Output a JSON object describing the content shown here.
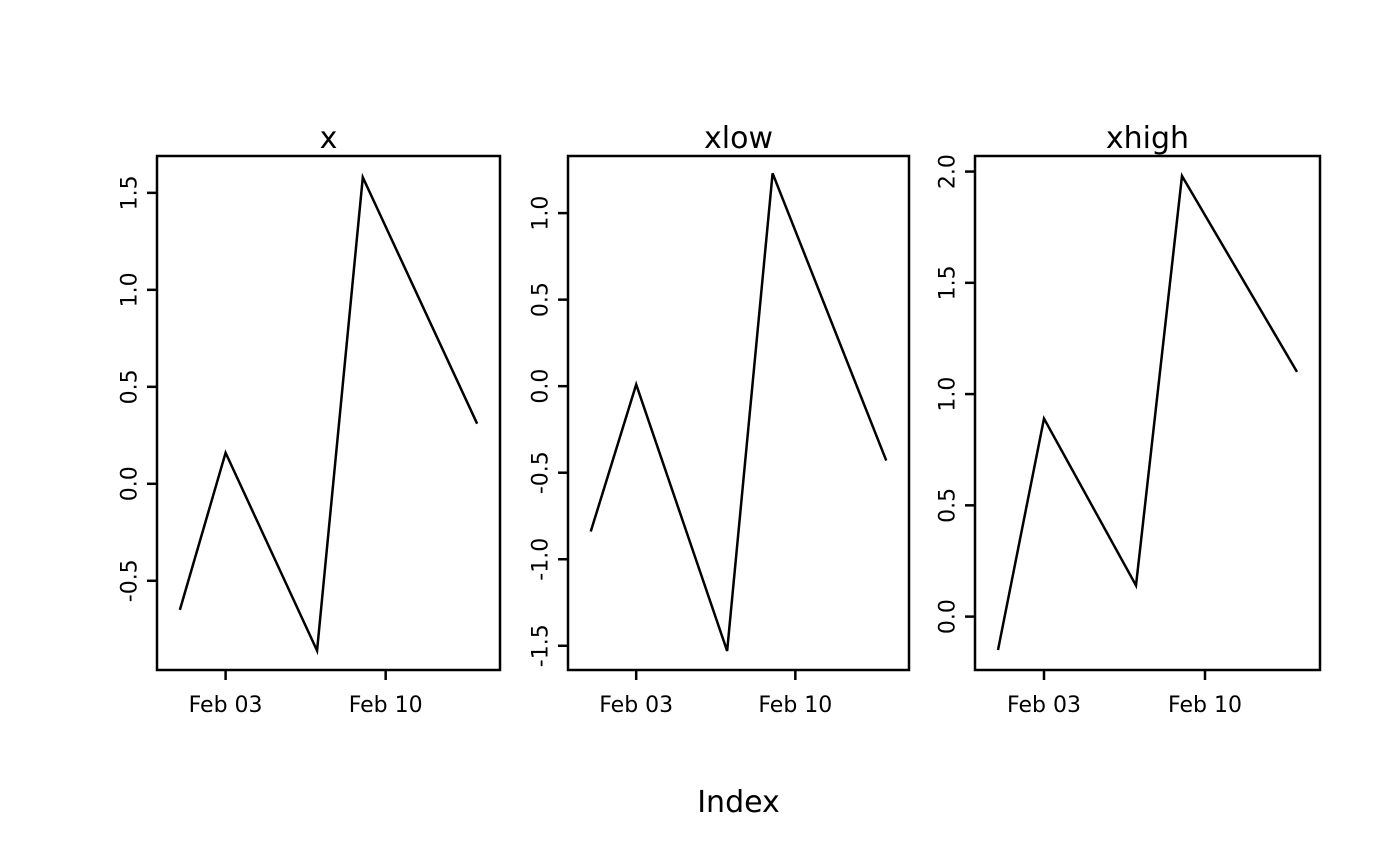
{
  "figure": {
    "xlabel": "Index",
    "background_color": "#ffffff",
    "line_color": "#000000",
    "text_color": "#000000"
  },
  "chart_data": [
    {
      "type": "line",
      "title": "x",
      "x": [
        0,
        2,
        6,
        8,
        13
      ],
      "values": [
        -0.65,
        0.16,
        -0.86,
        1.58,
        0.31
      ],
      "xlim": [
        -1,
        14
      ],
      "ylim": [
        -0.96,
        1.69
      ],
      "xticks": [
        {
          "x": 2,
          "label": "Feb 03"
        },
        {
          "x": 9,
          "label": "Feb 10"
        }
      ],
      "yticks": [
        {
          "y": -0.5,
          "label": "-0.5"
        },
        {
          "y": 0.0,
          "label": "0.0"
        },
        {
          "y": 0.5,
          "label": "0.5"
        },
        {
          "y": 1.0,
          "label": "1.0"
        },
        {
          "y": 1.5,
          "label": "1.5"
        }
      ],
      "grid": false,
      "legend": null
    },
    {
      "type": "line",
      "title": "xlow",
      "x": [
        0,
        2,
        6,
        8,
        13
      ],
      "values": [
        -0.84,
        0.01,
        -1.53,
        1.23,
        -0.43
      ],
      "xlim": [
        -1,
        14
      ],
      "ylim": [
        -1.64,
        1.33
      ],
      "xticks": [
        {
          "x": 2,
          "label": "Feb 03"
        },
        {
          "x": 9,
          "label": "Feb 10"
        }
      ],
      "yticks": [
        {
          "y": -1.5,
          "label": "-1.5"
        },
        {
          "y": -1.0,
          "label": "-1.0"
        },
        {
          "y": -0.5,
          "label": "-0.5"
        },
        {
          "y": 0.0,
          "label": "0.0"
        },
        {
          "y": 0.5,
          "label": "0.5"
        },
        {
          "y": 1.0,
          "label": "1.0"
        }
      ],
      "grid": false,
      "legend": null
    },
    {
      "type": "line",
      "title": "xhigh",
      "x": [
        0,
        2,
        6,
        8,
        13
      ],
      "values": [
        -0.15,
        0.89,
        0.14,
        1.98,
        1.1
      ],
      "xlim": [
        -1,
        14
      ],
      "ylim": [
        -0.24,
        2.07
      ],
      "xticks": [
        {
          "x": 2,
          "label": "Feb 03"
        },
        {
          "x": 9,
          "label": "Feb 10"
        }
      ],
      "yticks": [
        {
          "y": 0.0,
          "label": "0.0"
        },
        {
          "y": 0.5,
          "label": "0.5"
        },
        {
          "y": 1.0,
          "label": "1.0"
        },
        {
          "y": 1.5,
          "label": "1.5"
        },
        {
          "y": 2.0,
          "label": "2.0"
        }
      ],
      "grid": false,
      "legend": null
    }
  ]
}
